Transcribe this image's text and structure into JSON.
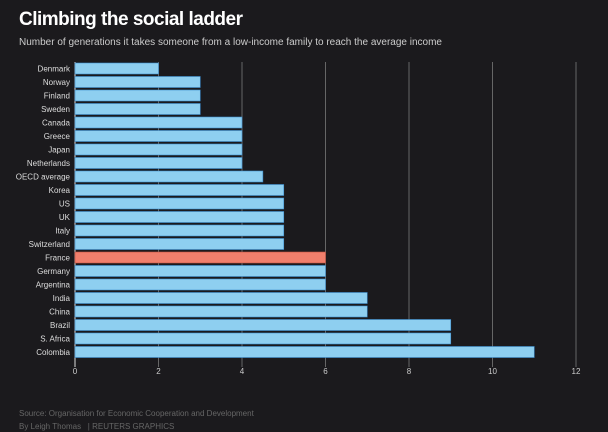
{
  "chart_data": {
    "type": "bar",
    "orientation": "horizontal",
    "title": "Climbing the social ladder",
    "subtitle": "Number of generations it takes someone from a low-income family to reach the average income",
    "categories": [
      "Denmark",
      "Norway",
      "Finland",
      "Sweden",
      "Canada",
      "Greece",
      "Japan",
      "Netherlands",
      "OECD average",
      "Korea",
      "US",
      "UK",
      "Italy",
      "Switzerland",
      "France",
      "Germany",
      "Argentina",
      "India",
      "China",
      "Brazil",
      "S. Africa",
      "Colombia"
    ],
    "values": [
      2,
      3,
      3,
      3,
      4,
      4,
      4,
      4,
      4.5,
      5,
      5,
      5,
      5,
      5,
      6,
      6,
      6,
      7,
      7,
      9,
      9,
      11
    ],
    "highlight": "France",
    "xlim": [
      0,
      12
    ],
    "xticks": [
      0,
      2,
      4,
      6,
      8,
      10,
      12
    ],
    "grid": true,
    "colors": {
      "bar": "#8ecff0",
      "bar_border": "#3d8fd0",
      "highlight": "#f07f6c",
      "background": "#1b1a1d",
      "grid": "#666666"
    }
  },
  "footer": {
    "source": "Source: Organisation for Economic Cooperation and Development",
    "credit": "By Leigh Thomas   | REUTERS GRAPHICS"
  }
}
